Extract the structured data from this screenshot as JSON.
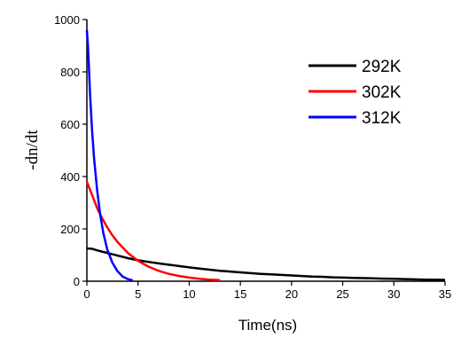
{
  "chart_data": {
    "type": "line",
    "xlabel": "Time(ns)",
    "ylabel": "-dn/dt",
    "xlim": [
      0,
      35
    ],
    "ylim": [
      0,
      1000
    ],
    "xticks": [
      0,
      5,
      10,
      15,
      20,
      25,
      30,
      35
    ],
    "yticks": [
      0,
      200,
      400,
      600,
      800,
      1000
    ],
    "legend_position": "top-right",
    "grid": false,
    "series": [
      {
        "name": "292K",
        "color": "#000000",
        "x": [
          0,
          0.5,
          1,
          2,
          3,
          4,
          5,
          6,
          7,
          8,
          9,
          10,
          11,
          12,
          13,
          14,
          15,
          16,
          17,
          18,
          19,
          20,
          21,
          22,
          23,
          24,
          25,
          26,
          27,
          28,
          29,
          30,
          31,
          32,
          33,
          34,
          35
        ],
        "values": [
          125,
          124,
          118,
          108,
          98,
          88,
          80,
          74,
          68,
          63,
          58,
          53,
          48,
          44,
          40,
          37,
          34,
          31,
          28,
          26,
          24,
          22,
          20,
          18,
          17,
          15,
          14,
          13,
          12,
          11,
          10,
          9,
          8,
          7,
          6,
          6,
          5
        ]
      },
      {
        "name": "302K",
        "color": "#ff0000",
        "x": [
          0,
          0.5,
          1,
          1.5,
          2,
          2.5,
          3,
          4,
          5,
          6,
          7,
          8,
          9,
          10,
          11,
          12,
          13
        ],
        "values": [
          380,
          330,
          280,
          240,
          205,
          175,
          150,
          108,
          78,
          56,
          40,
          28,
          20,
          14,
          9,
          6,
          4
        ]
      },
      {
        "name": "312K",
        "color": "#0000ff",
        "x": [
          0,
          0.1,
          0.2,
          0.3,
          0.5,
          0.7,
          1,
          1.3,
          1.6,
          2,
          2.5,
          3,
          3.5,
          4,
          4.5
        ],
        "values": [
          960,
          900,
          820,
          720,
          580,
          470,
          350,
          255,
          185,
          120,
          70,
          38,
          18,
          8,
          3
        ]
      }
    ]
  }
}
